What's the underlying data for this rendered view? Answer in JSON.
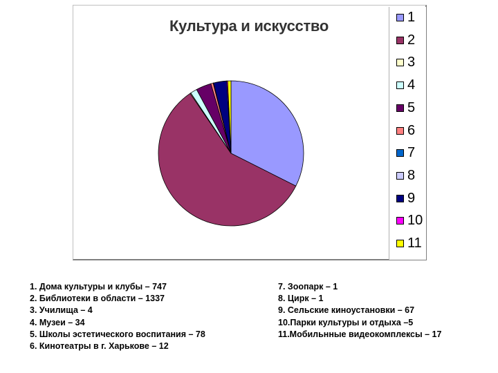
{
  "chart_data": {
    "type": "pie",
    "title": "Культура и искусство",
    "categories": [
      "1",
      "2",
      "3",
      "4",
      "5",
      "6",
      "7",
      "8",
      "9",
      "10",
      "11"
    ],
    "values": [
      747,
      1337,
      4,
      34,
      78,
      12,
      1,
      1,
      67,
      5,
      17
    ],
    "colors": [
      "#9999ff",
      "#993366",
      "#ffffcc",
      "#ccffff",
      "#660066",
      "#ff8080",
      "#0066cc",
      "#ccccff",
      "#000080",
      "#ff00ff",
      "#ffff00"
    ],
    "legend": {
      "position": "right",
      "entries": [
        "1",
        "2",
        "3",
        "4",
        "5",
        "6",
        "7",
        "8",
        "9",
        "10",
        "11"
      ]
    }
  },
  "caption": {
    "left": [
      "1. Дома культуры и клубы – 747",
      "2. Библиотеки в области – 1337",
      "3. Училища – 4",
      "4. Музеи – 34",
      "5. Школы эстетического воспитания – 78",
      "6. Кинотеатры в г. Харькове – 12"
    ],
    "right": [
      "7. Зоопарк – 1",
      "8. Цирк – 1",
      "9. Сельские киноустановки – 67",
      "10.Парки культуры и отдыха –5",
      "11.Мобильнные видеокомплексы – 17"
    ]
  }
}
